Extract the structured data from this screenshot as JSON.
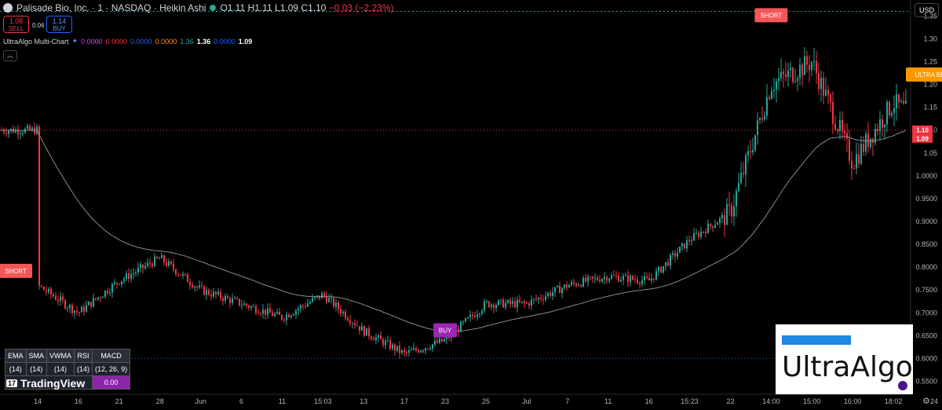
{
  "header": {
    "symbol": "Palisade Bio, Inc. · 1 · NASDAQ · Heikin Ashi",
    "o": "1.11",
    "h": "1.11",
    "l": "1.09",
    "c": "1.10",
    "change": "−0.03 (−2.23%)"
  },
  "trade": {
    "sell_price": "1.08",
    "sell_label": "SELL",
    "spread": "0.06",
    "buy_price": "1.14",
    "buy_label": "BUY"
  },
  "indicator": {
    "name": "UltraAlgo Multi-Chart",
    "values": [
      "0.0000",
      "0.0000",
      "0.0000",
      "0.0000",
      "1.36",
      "1.36",
      "0.0000",
      "1.09"
    ],
    "colors": [
      "#e040fb",
      "#f23645",
      "#2962ff",
      "#ff9800",
      "#26a69a",
      "#ffffff",
      "#2962ff",
      "#ffffff"
    ]
  },
  "currency": "USD",
  "table": {
    "headers": [
      "EMA",
      "SMA",
      "VWMA",
      "RSI",
      "MACD"
    ],
    "row": [
      "(14)",
      "(14)",
      "(14)",
      "(14)",
      "(12, 26, 9)"
    ],
    "macd_value": "0.00"
  },
  "brand": {
    "tradingview": "TradingView",
    "tv_mark": "17",
    "ultraalgo": "UltraAlgo"
  },
  "colors": {
    "up": "#26a69a",
    "down": "#f23645",
    "ma": "#8a8a8a",
    "short": "#f25757",
    "bear": "#ff9800",
    "buy": "#9c27b0"
  },
  "chart_data": {
    "type": "candlestick",
    "ylim": [
      0.525,
      1.385
    ],
    "y_ticks": [
      "1.35",
      "1.30",
      "1.25",
      "1.20",
      "1.15",
      "1.10",
      "1.05",
      "1.0000",
      "0.9500",
      "0.9000",
      "0.8500",
      "0.8000",
      "0.7500",
      "0.7000",
      "0.6500",
      "0.6000",
      "0.5500"
    ],
    "x_ticks": [
      "14",
      "16",
      "21",
      "28",
      "Jun",
      "6",
      "11",
      "15:03",
      "13",
      "17",
      "23",
      "25",
      "Jul",
      "7",
      "11",
      "16",
      "15:23",
      "22",
      "14:00",
      "15:00",
      "16:00",
      "18:02",
      "24"
    ],
    "price_labels": [
      "1.10",
      "1.09"
    ],
    "reference_lines": {
      "resistance": 1.36,
      "current": 1.1,
      "support": 0.6
    },
    "close_path": [
      {
        "x": "14",
        "y": 0.76
      },
      {
        "x": "16",
        "y": 0.7
      },
      {
        "x": "21",
        "y": 0.77
      },
      {
        "x": "28",
        "y": 0.82
      },
      {
        "x": "Jun",
        "y": 0.75
      },
      {
        "x": "6",
        "y": 0.72
      },
      {
        "x": "11",
        "y": 0.69
      },
      {
        "x": "15:03",
        "y": 0.74
      },
      {
        "x": "13",
        "y": 0.66
      },
      {
        "x": "17",
        "y": 0.61
      },
      {
        "x": "23",
        "y": 0.64
      },
      {
        "x": "25",
        "y": 0.72
      },
      {
        "x": "Jul",
        "y": 0.72
      },
      {
        "x": "7",
        "y": 0.76
      },
      {
        "x": "11",
        "y": 0.78
      },
      {
        "x": "16",
        "y": 0.77
      },
      {
        "x": "15:23",
        "y": 0.86
      },
      {
        "x": "22",
        "y": 0.92
      },
      {
        "x": "14:00",
        "y": 1.2
      },
      {
        "x": "15:00",
        "y": 1.25
      },
      {
        "x": "16:00",
        "y": 1.03
      },
      {
        "x": "18:02",
        "y": 1.16
      },
      {
        "x": "24",
        "y": 1.1
      }
    ],
    "signals": [
      {
        "label": "SHORT",
        "x": "14",
        "y": 0.79
      },
      {
        "label": "BUY",
        "x": "23",
        "y": 0.66
      },
      {
        "label": "SHORT",
        "x": "14:00",
        "y": 1.35
      },
      {
        "label": "ULTRA BEAR",
        "x": "24",
        "y": 1.22
      }
    ]
  }
}
